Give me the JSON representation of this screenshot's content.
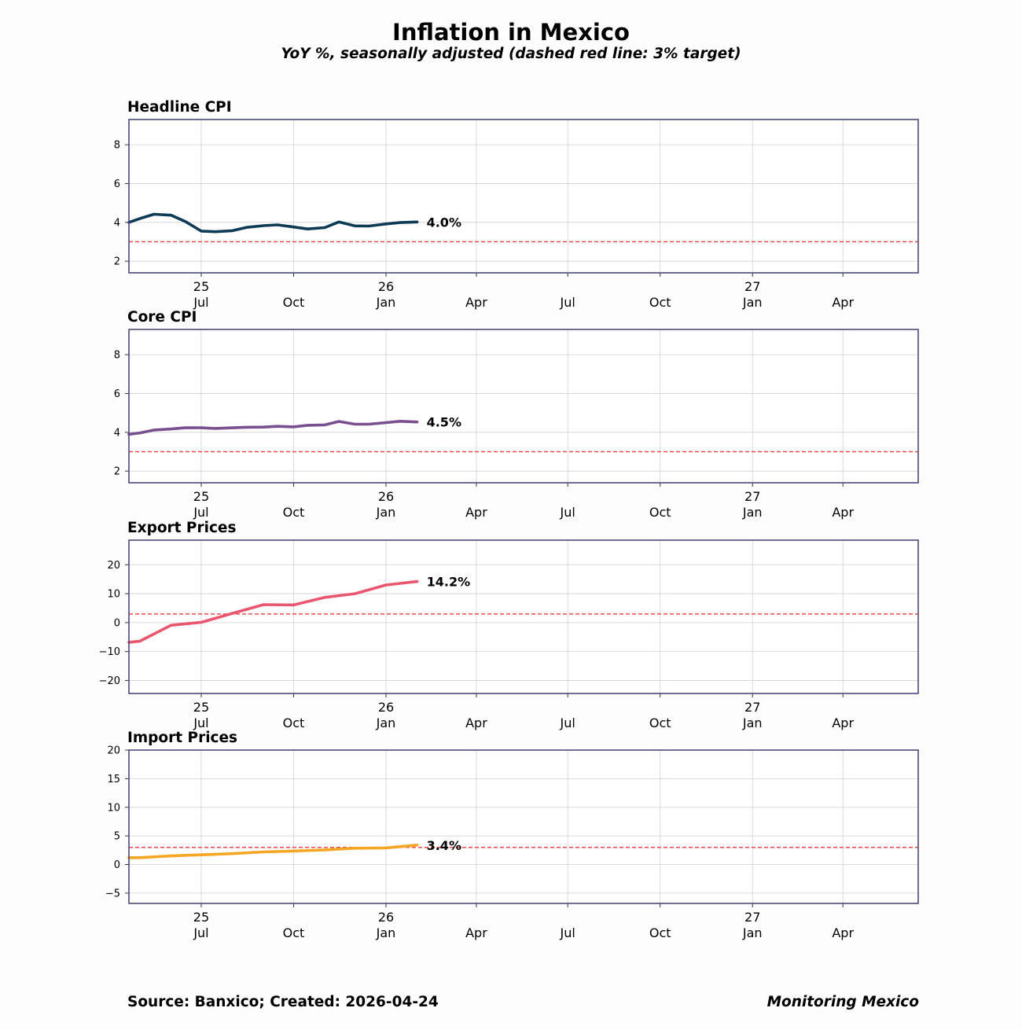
{
  "title": "Inflation in Mexico",
  "subtitle": "YoY %, seasonally adjusted (dashed red line: 3% target)",
  "footer": {
    "source": "Source: Banxico; Created: 2026-04-24",
    "brand": "Monitoring Mexico"
  },
  "colors": {
    "frame": "#4a4a7a",
    "grid": "#d0d0d0",
    "target": "#f04a4a"
  },
  "x_axis": {
    "domain": [
      "2025-04-20",
      "2027-06-15"
    ],
    "ticks": [
      {
        "date": "2025-07-01",
        "month": "Jul",
        "year": "25"
      },
      {
        "date": "2025-10-01",
        "month": "Oct",
        "year": ""
      },
      {
        "date": "2026-01-01",
        "month": "Jan",
        "year": "26"
      },
      {
        "date": "2026-04-01",
        "month": "Apr",
        "year": ""
      },
      {
        "date": "2026-07-01",
        "month": "Jul",
        "year": ""
      },
      {
        "date": "2026-10-01",
        "month": "Oct",
        "year": ""
      },
      {
        "date": "2027-01-01",
        "month": "Jan",
        "year": "27"
      },
      {
        "date": "2027-04-01",
        "month": "Apr",
        "year": ""
      }
    ]
  },
  "chart_data": [
    {
      "type": "line",
      "title": "Headline CPI",
      "color": "#0d3b55",
      "ylim": [
        1.4,
        9.3
      ],
      "yticks": [
        2,
        4,
        6,
        8
      ],
      "target": 3,
      "last_label": "4.0%",
      "x": [
        "2025-04-20",
        "2025-05-01",
        "2025-05-15",
        "2025-06-01",
        "2025-06-15",
        "2025-07-01",
        "2025-07-15",
        "2025-08-01",
        "2025-08-15",
        "2025-09-01",
        "2025-09-15",
        "2025-10-01",
        "2025-10-15",
        "2025-11-01",
        "2025-11-15",
        "2025-12-01",
        "2025-12-15",
        "2026-01-01",
        "2026-01-15",
        "2026-02-01"
      ],
      "values": [
        4.0,
        4.2,
        4.42,
        4.37,
        4.05,
        3.55,
        3.52,
        3.57,
        3.74,
        3.83,
        3.87,
        3.76,
        3.66,
        3.73,
        4.02,
        3.82,
        3.81,
        3.92,
        3.99,
        4.02
      ]
    },
    {
      "type": "line",
      "title": "Core CPI",
      "color": "#7a4f8f",
      "ylim": [
        1.4,
        9.3
      ],
      "yticks": [
        2,
        4,
        6,
        8
      ],
      "target": 3,
      "last_label": "4.5%",
      "x": [
        "2025-04-20",
        "2025-05-01",
        "2025-05-15",
        "2025-06-01",
        "2025-06-15",
        "2025-07-01",
        "2025-07-15",
        "2025-08-01",
        "2025-08-15",
        "2025-09-01",
        "2025-09-15",
        "2025-10-01",
        "2025-10-15",
        "2025-11-01",
        "2025-11-15",
        "2025-12-01",
        "2025-12-15",
        "2026-01-01",
        "2026-01-15",
        "2026-02-01"
      ],
      "values": [
        3.9,
        3.97,
        4.12,
        4.17,
        4.23,
        4.23,
        4.2,
        4.23,
        4.26,
        4.27,
        4.31,
        4.28,
        4.36,
        4.38,
        4.56,
        4.42,
        4.42,
        4.5,
        4.57,
        4.53
      ]
    },
    {
      "type": "line",
      "title": "Export Prices",
      "color": "#e8566f",
      "ylim": [
        -24.5,
        28.5
      ],
      "yticks": [
        -20,
        -10,
        0,
        10,
        20
      ],
      "target": 3,
      "last_label": "14.2%",
      "x": [
        "2025-04-20",
        "2025-05-01",
        "2025-06-01",
        "2025-07-01",
        "2025-08-01",
        "2025-09-01",
        "2025-10-01",
        "2025-11-01",
        "2025-12-01",
        "2026-01-01",
        "2026-02-01"
      ],
      "values": [
        -6.8,
        -6.4,
        -0.9,
        0.1,
        3.2,
        6.2,
        6.1,
        8.7,
        10.0,
        13.0,
        14.2
      ]
    },
    {
      "type": "line",
      "title": "Import Prices",
      "color": "#f5a623",
      "ylim": [
        -6.8,
        20.0
      ],
      "yticks": [
        -5,
        0,
        5,
        10,
        15,
        20
      ],
      "target": 3,
      "last_label": "3.4%",
      "x": [
        "2025-04-20",
        "2025-05-01",
        "2025-06-01",
        "2025-07-01",
        "2025-08-01",
        "2025-09-01",
        "2025-10-01",
        "2025-11-01",
        "2025-12-01",
        "2026-01-01",
        "2026-02-01"
      ],
      "values": [
        1.2,
        1.2,
        1.5,
        1.7,
        1.9,
        2.2,
        2.35,
        2.55,
        2.85,
        2.9,
        3.4
      ]
    }
  ]
}
